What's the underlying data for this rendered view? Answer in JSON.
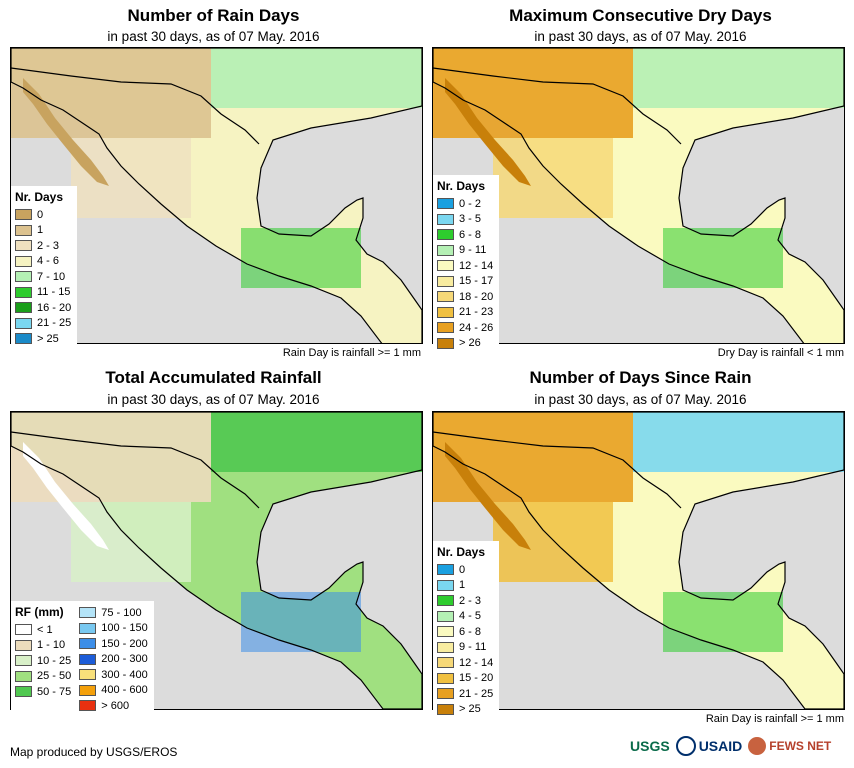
{
  "panels": [
    {
      "id": "rain_days",
      "title": "Number of Rain Days",
      "subtitle": "in past 30 days, as of 07 May. 2016",
      "legend_title": "Nr. Days",
      "legend": [
        {
          "label": "0",
          "color": "#c8a35f"
        },
        {
          "label": "1",
          "color": "#dcc28f"
        },
        {
          "label": "2 - 3",
          "color": "#efe0bf"
        },
        {
          "label": "4 - 6",
          "color": "#f6f3c2"
        },
        {
          "label": "7 - 10",
          "color": "#b4f0b4"
        },
        {
          "label": "11 - 15",
          "color": "#2ecc2e"
        },
        {
          "label": "16 - 20",
          "color": "#1a9e1a"
        },
        {
          "label": "21 - 25",
          "color": "#7ad7f0"
        },
        {
          "label": "> 25",
          "color": "#1a8ac8"
        }
      ],
      "note": "Rain Day is rainfall >= 1 mm"
    },
    {
      "id": "max_dry_days",
      "title": "Maximum Consecutive Dry Days",
      "subtitle": "in past 30 days, as of 07 May. 2016",
      "legend_title": "Nr. Days",
      "legend": [
        {
          "label": "0 - 2",
          "color": "#1aa0e0"
        },
        {
          "label": "3 - 5",
          "color": "#7ad7f0"
        },
        {
          "label": "6 - 8",
          "color": "#2ecc2e"
        },
        {
          "label": "9 - 11",
          "color": "#b4f0b4"
        },
        {
          "label": "12 - 14",
          "color": "#fafac0"
        },
        {
          "label": "15 - 17",
          "color": "#f8eca0"
        },
        {
          "label": "18 - 20",
          "color": "#f6d878"
        },
        {
          "label": "21 - 23",
          "color": "#f0c040"
        },
        {
          "label": "24 - 26",
          "color": "#e8a020"
        },
        {
          "label": "> 26",
          "color": "#c8800a"
        }
      ],
      "note": "Dry Day is rainfall < 1 mm"
    },
    {
      "id": "total_rf",
      "title": "Total Accumulated Rainfall",
      "subtitle": "in past 30 days, as of 07 May. 2016",
      "legend_title": "RF (mm)",
      "legend": [
        {
          "label": "< 1",
          "color": "#ffffff"
        },
        {
          "label": "1 - 10",
          "color": "#ecdcbc"
        },
        {
          "label": "10 - 25",
          "color": "#d8f0c8"
        },
        {
          "label": "25 - 50",
          "color": "#a0e080"
        },
        {
          "label": "50 - 75",
          "color": "#50c850"
        }
      ],
      "legend2": [
        {
          "label": "75 - 100",
          "color": "#b4e4f8"
        },
        {
          "label": "100 - 150",
          "color": "#78c8f0"
        },
        {
          "label": "150 - 200",
          "color": "#3c8ee8"
        },
        {
          "label": "200 - 300",
          "color": "#1c5cd8"
        },
        {
          "label": "300 - 400",
          "color": "#f8e07a"
        },
        {
          "label": "400 - 600",
          "color": "#f4a00a"
        },
        {
          "label": "> 600",
          "color": "#e83010"
        }
      ],
      "note": ""
    },
    {
      "id": "days_since_rain",
      "title": "Number of Days Since Rain",
      "subtitle": "in past 30 days, as of 07 May. 2016",
      "legend_title": "Nr. Days",
      "legend": [
        {
          "label": "0",
          "color": "#1aa0e0"
        },
        {
          "label": "1",
          "color": "#7ad7f0"
        },
        {
          "label": "2 - 3",
          "color": "#2ecc2e"
        },
        {
          "label": "4 - 5",
          "color": "#b4f0b4"
        },
        {
          "label": "6 - 8",
          "color": "#fafac0"
        },
        {
          "label": "9 - 11",
          "color": "#f8eca0"
        },
        {
          "label": "12 - 14",
          "color": "#f6d878"
        },
        {
          "label": "15 - 20",
          "color": "#f0c040"
        },
        {
          "label": "21 - 25",
          "color": "#e8a020"
        },
        {
          "label": "> 25",
          "color": "#c8800a"
        }
      ],
      "note": "Rain Day is rainfall >= 1 mm"
    }
  ],
  "credit": "Map produced by USGS/EROS",
  "logos": {
    "usgs": "USGS",
    "usaid": "USAID",
    "fews": "FEWS NET"
  },
  "colors": {
    "ocean": "#dcdcdc"
  }
}
